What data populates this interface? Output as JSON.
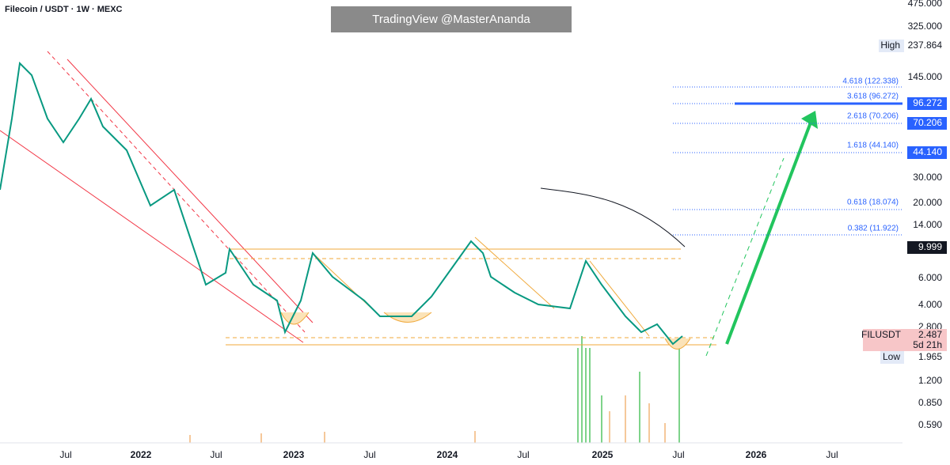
{
  "header": {
    "symbol": "Filecoin / USDT · 1W · MEXC",
    "watermark": "TradingView @MasterAnanda"
  },
  "price_axis": {
    "labels": [
      "475.000",
      "325.000",
      "145.000",
      "30.000",
      "20.000",
      "14.000",
      "6.000",
      "4.000",
      "2.800",
      "1.200",
      "0.850",
      "0.590"
    ]
  },
  "markers": {
    "high": {
      "label": "High",
      "value": "237.864"
    },
    "low": {
      "label": "Low",
      "value": "1.965"
    },
    "current": {
      "symbol": "FILUSDT",
      "value": "2.487",
      "countdown": "5d 21h"
    },
    "ma": "9.999"
  },
  "fib": {
    "levels": [
      {
        "label": "4.618 (122.338)"
      },
      {
        "label": "3.618 (96.272)",
        "tag": "96.272"
      },
      {
        "label": "2.618 (70.206)",
        "tag": "70.206"
      },
      {
        "label": "1.618 (44.140)",
        "tag": "44.140"
      },
      {
        "label": "0.618 (18.074)"
      },
      {
        "label": "0.382 (11.922)"
      }
    ]
  },
  "time_axis": {
    "labels": [
      "Jul",
      "2022",
      "Jul",
      "2023",
      "Jul",
      "2024",
      "Jul",
      "2025",
      "Jul",
      "2026",
      "Jul"
    ]
  }
}
